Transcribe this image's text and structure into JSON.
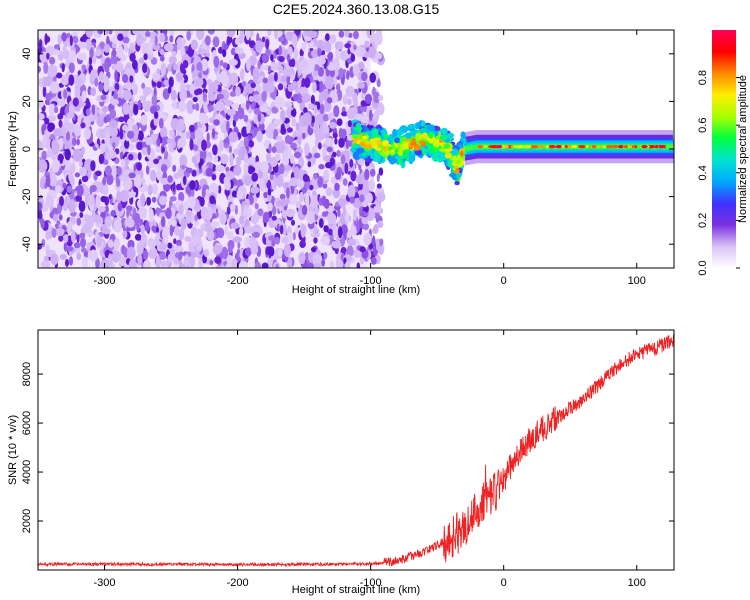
{
  "title": "C2E5.2024.360.13.08.G15",
  "chart_data": [
    {
      "type": "heatmap",
      "xlabel": "Height of straight line (km)",
      "ylabel": "Frequency (Hz)",
      "xlim": [
        -350,
        128
      ],
      "ylim": [
        -50,
        50
      ],
      "x_ticks": [
        -300,
        -200,
        -100,
        0,
        100
      ],
      "y_ticks": [
        -40,
        -20,
        0,
        20,
        40
      ],
      "colorbar": {
        "label": "Normalized spectral amplitude",
        "range": [
          0,
          1
        ],
        "ticks": [
          0.0,
          0.2,
          0.4,
          0.6,
          0.8
        ],
        "tick_labels": [
          "0.0",
          "0.2",
          "0.4",
          "0.6",
          "0.8"
        ],
        "colors": [
          "#ffffff",
          "#d9c2f5",
          "#7b2fe0",
          "#3f33ff",
          "#00aaff",
          "#00e5d0",
          "#00ff40",
          "#aaff00",
          "#ffee00",
          "#ff8800",
          "#ff0000",
          "#ff0055"
        ]
      },
      "regions": [
        {
          "x": [
            -350,
            -100
          ],
          "y": [
            -50,
            50
          ],
          "description_level": 0.1
        },
        {
          "x": [
            -112,
            -30
          ],
          "y": [
            -14,
            12
          ],
          "description_level": 0.45
        },
        {
          "x": [
            -30,
            128
          ],
          "y": [
            -3,
            3
          ],
          "description_level": 0.6
        }
      ],
      "carrier": {
        "x": [
          -112,
          -100,
          -90,
          -80,
          -70,
          -60,
          -50,
          -40,
          -35,
          -30,
          -20,
          0,
          50,
          128
        ],
        "y": [
          4,
          2,
          1,
          0,
          2,
          4,
          3,
          -1,
          -8,
          0,
          1,
          1,
          1,
          1
        ]
      }
    },
    {
      "type": "line",
      "xlabel": "Height of straight line (km)",
      "ylabel": "SNR (10 * v/v)",
      "xlim": [
        -350,
        128
      ],
      "ylim": [
        0,
        9800
      ],
      "x_ticks": [
        -300,
        -200,
        -100,
        0,
        100
      ],
      "y_ticks": [
        2000,
        4000,
        6000,
        8000
      ],
      "series": [
        {
          "color": "#ee2222",
          "x": [
            -350,
            -300,
            -250,
            -200,
            -150,
            -110,
            -100,
            -90,
            -80,
            -70,
            -60,
            -50,
            -40,
            -30,
            -25,
            -20,
            -15,
            -10,
            -5,
            0,
            5,
            10,
            20,
            30,
            40,
            50,
            60,
            70,
            80,
            90,
            100,
            110,
            120,
            128
          ],
          "y": [
            230,
            240,
            230,
            220,
            230,
            250,
            260,
            300,
            380,
            550,
            750,
            1000,
            1300,
            1700,
            2100,
            2500,
            2900,
            3000,
            3300,
            3700,
            4200,
            4700,
            5300,
            5800,
            6200,
            6600,
            7000,
            7500,
            8000,
            8500,
            8800,
            9000,
            9200,
            9400
          ]
        }
      ]
    }
  ]
}
